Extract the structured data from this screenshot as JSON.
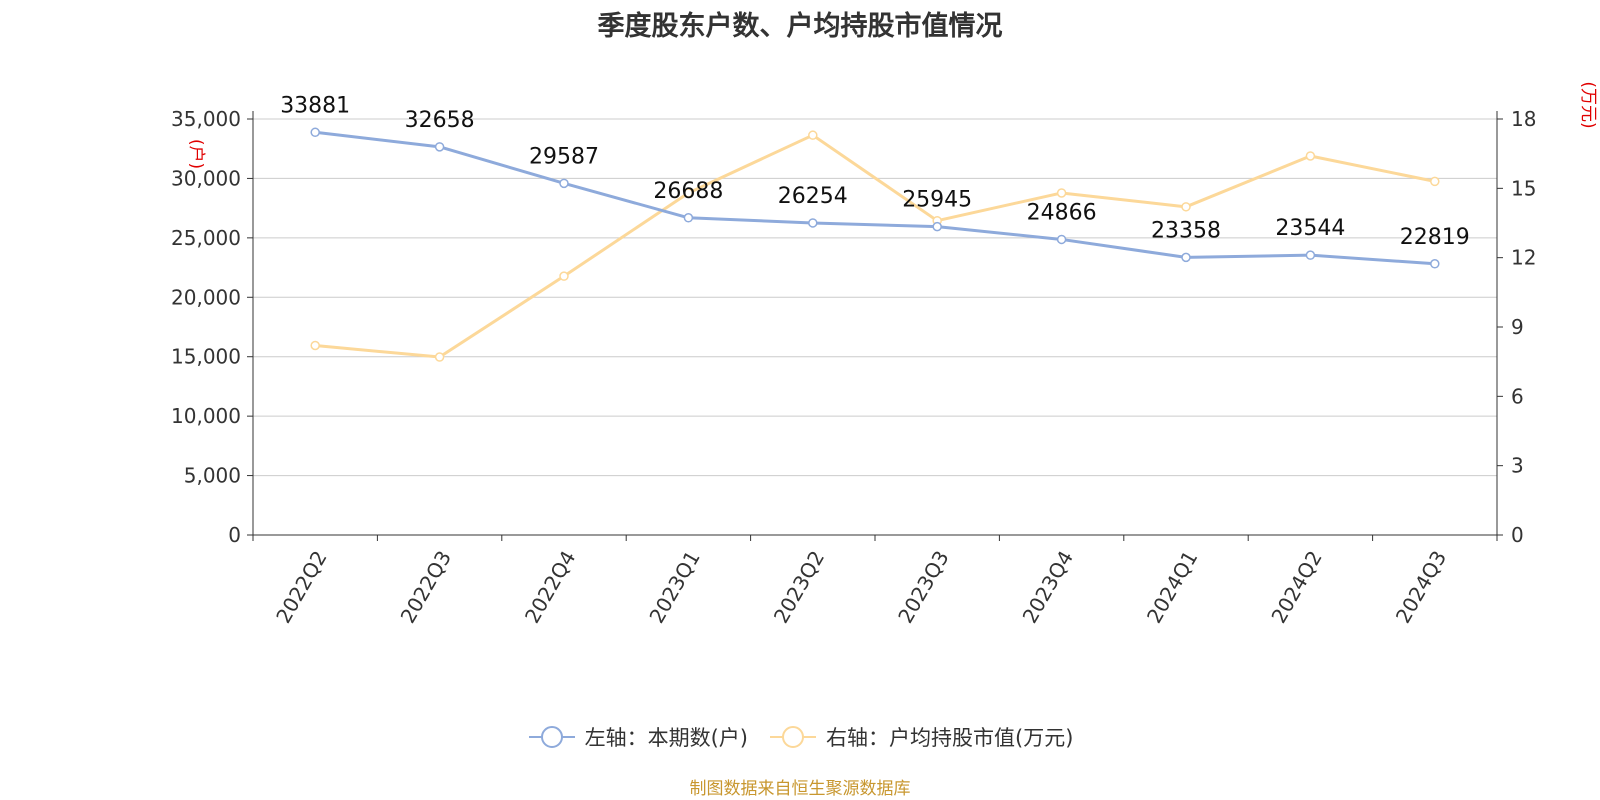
{
  "title": "季度股东户数、户均持股市值情况",
  "source": "制图数据来自恒生聚源数据库",
  "colors": {
    "left": "#8eaadb",
    "right": "#fcd899",
    "unit": "#e00000",
    "grid": "#cccccc",
    "axis": "#333333"
  },
  "chart_data": {
    "type": "line",
    "categories": [
      "2022Q2",
      "2022Q3",
      "2022Q4",
      "2023Q1",
      "2023Q2",
      "2023Q3",
      "2023Q4",
      "2024Q1",
      "2024Q2",
      "2024Q3"
    ],
    "series": [
      {
        "name": "左轴：本期数(户)",
        "axis": "left",
        "values": [
          33881,
          32658,
          29587,
          26688,
          26254,
          25945,
          24866,
          23358,
          23544,
          22819
        ],
        "labels": [
          "33881",
          "32658",
          "29587",
          "26688",
          "26254",
          "25945",
          "24866",
          "23358",
          "23544",
          "22819"
        ]
      },
      {
        "name": "右轴：户均持股市值(万元)",
        "axis": "right",
        "values": [
          8.2,
          7.7,
          11.2,
          14.8,
          17.3,
          13.6,
          14.8,
          14.2,
          16.4,
          15.3
        ]
      }
    ],
    "left_axis": {
      "unit": "(户)",
      "ylim": [
        0,
        35000
      ],
      "ticks": [
        0,
        5000,
        10000,
        15000,
        20000,
        25000,
        30000,
        35000
      ],
      "tick_labels": [
        "0",
        "5,000",
        "10,000",
        "15,000",
        "20,000",
        "25,000",
        "30,000",
        "35,000"
      ]
    },
    "right_axis": {
      "unit": "(万元)",
      "ylim": [
        0,
        18
      ],
      "ticks": [
        0,
        3,
        6,
        9,
        12,
        15,
        18
      ],
      "tick_labels": [
        "0",
        "3",
        "6",
        "9",
        "12",
        "15",
        "18"
      ]
    },
    "grid": true,
    "legend": "bottom"
  }
}
